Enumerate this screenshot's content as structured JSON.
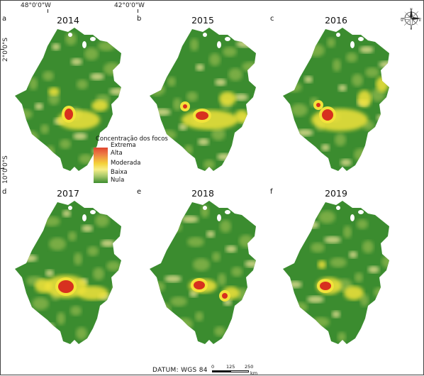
{
  "graticule": {
    "lon_labels": [
      "48°0'0\"W",
      "42°0'0\"W"
    ],
    "lat_labels": [
      "2°0'0\"S",
      "10°0'0\"S"
    ]
  },
  "panels": [
    {
      "letter": "a",
      "year": "2014"
    },
    {
      "letter": "b",
      "year": "2015"
    },
    {
      "letter": "c",
      "year": "2016"
    },
    {
      "letter": "d",
      "year": "2017"
    },
    {
      "letter": "e",
      "year": "2018"
    },
    {
      "letter": "f",
      "year": "2019"
    }
  ],
  "legend": {
    "title": "Concentração dos focos",
    "classes": [
      "Extrema",
      "Alta",
      "Moderada",
      "Baixa",
      "Nula"
    ],
    "colors": {
      "extrema": "#d7301f",
      "alta": "#ee7a45",
      "moderada": "#f2e33b",
      "baixa": "#f3e79b",
      "nula": "#3b8c2f"
    }
  },
  "compass": {
    "icon": "compass-rose-icon",
    "directions": [
      "N",
      "E",
      "S",
      "W"
    ]
  },
  "footer": {
    "datum": "DATUM: WGS 84",
    "scale_ticks": [
      "0",
      "125",
      "250"
    ],
    "scale_unit": "km"
  }
}
